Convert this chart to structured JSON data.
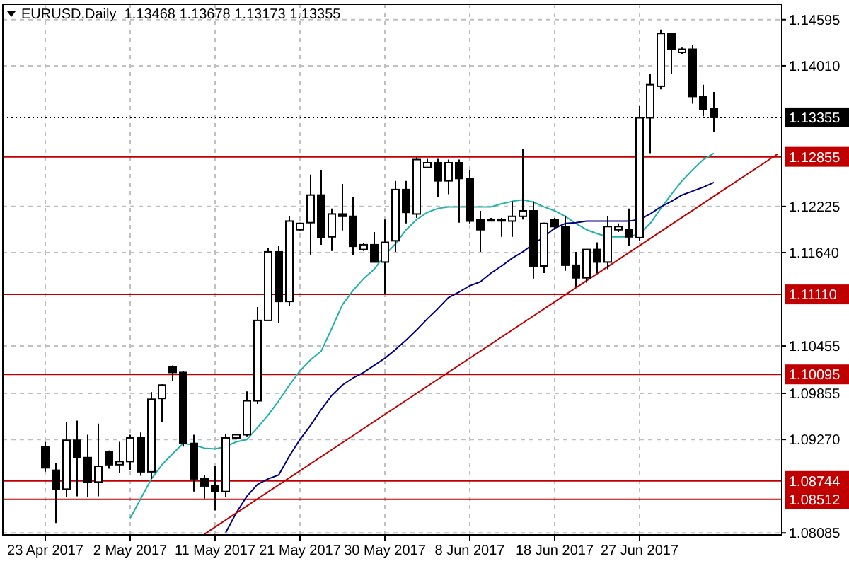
{
  "chart_data": {
    "type": "candlestick",
    "title": "EURUSD,Daily  1.13468 1.13678 1.13173 1.13355",
    "categories": [
      "23 Apr 2017",
      null,
      null,
      null,
      null,
      null,
      null,
      null,
      "2 May 2017",
      null,
      null,
      null,
      null,
      null,
      null,
      null,
      "11 May 2017",
      null,
      null,
      null,
      null,
      null,
      null,
      null,
      "21 May 2017",
      null,
      null,
      null,
      null,
      null,
      null,
      null,
      "30 May 2017",
      null,
      null,
      null,
      null,
      null,
      null,
      null,
      "8 Jun 2017",
      null,
      null,
      null,
      null,
      null,
      null,
      null,
      "18 Jun 2017",
      null,
      null,
      null,
      null,
      null,
      null,
      null,
      "27 Jun 2017",
      null,
      null,
      null,
      null,
      null,
      null,
      null,
      null,
      null,
      null,
      null,
      null,
      null
    ],
    "ohlc": [
      [
        1.0918,
        1.0924,
        1.0886,
        1.0891
      ],
      [
        1.0888,
        1.0897,
        1.0821,
        1.0864
      ],
      [
        1.0864,
        1.0949,
        1.0854,
        1.0926
      ],
      [
        1.0926,
        1.0951,
        1.0855,
        1.0904
      ],
      [
        1.0904,
        1.0933,
        1.0854,
        1.0873
      ],
      [
        1.0873,
        1.0947,
        1.0855,
        1.0893
      ],
      [
        1.0911,
        1.0913,
        1.089,
        1.0895
      ],
      [
        1.0895,
        1.0924,
        1.0884,
        1.0899
      ],
      [
        1.0899,
        1.0933,
        1.0888,
        1.0929
      ],
      [
        1.0929,
        1.0936,
        1.0881,
        1.0886
      ],
      [
        1.0886,
        1.0987,
        1.0877,
        1.0978
      ],
      [
        1.0979,
        1.0997,
        1.0949,
        1.0996
      ],
      [
        1.1019,
        1.1021,
        1.1001,
        1.1012
      ],
      [
        1.1012,
        1.1014,
        1.0918,
        1.0922
      ],
      [
        1.0922,
        1.0933,
        1.0861,
        1.0877
      ],
      [
        1.0877,
        1.0882,
        1.0852,
        1.0868
      ],
      [
        1.0868,
        1.0893,
        1.0837,
        1.0861
      ],
      [
        1.0861,
        1.0934,
        1.0854,
        1.0929
      ],
      [
        1.0929,
        1.0934,
        1.0927,
        1.0933
      ],
      [
        1.0933,
        1.0988,
        1.0931,
        1.0976
      ],
      [
        1.0976,
        1.1095,
        1.0972,
        1.1078
      ],
      [
        1.1078,
        1.117,
        1.1078,
        1.1165
      ],
      [
        1.1165,
        1.1172,
        1.1075,
        1.1102
      ],
      [
        1.1102,
        1.121,
        1.1096,
        1.1204
      ],
      [
        1.1193,
        1.1202,
        1.1192,
        1.1201
      ],
      [
        1.1202,
        1.1263,
        1.1161,
        1.1237
      ],
      [
        1.1237,
        1.1269,
        1.1174,
        1.1183
      ],
      [
        1.1184,
        1.122,
        1.1166,
        1.1213
      ],
      [
        1.1213,
        1.1251,
        1.1192,
        1.121
      ],
      [
        1.121,
        1.1235,
        1.1161,
        1.1172
      ],
      [
        1.1168,
        1.1176,
        1.1166,
        1.1174
      ],
      [
        1.1174,
        1.119,
        1.1152,
        1.1152
      ],
      [
        1.1152,
        1.1206,
        1.1111,
        1.1177
      ],
      [
        1.1179,
        1.1255,
        1.1165,
        1.1244
      ],
      [
        1.1244,
        1.1255,
        1.1201,
        1.1215
      ],
      [
        1.1213,
        1.1285,
        1.1208,
        1.1282
      ],
      [
        1.1272,
        1.1283,
        1.1271,
        1.1278
      ],
      [
        1.1278,
        1.1283,
        1.1235,
        1.1255
      ],
      [
        1.1255,
        1.1282,
        1.1238,
        1.1278
      ],
      [
        1.1278,
        1.1282,
        1.1202,
        1.1258
      ],
      [
        1.1258,
        1.1269,
        1.1201,
        1.1204
      ],
      [
        1.1206,
        1.1217,
        1.1165,
        1.1193
      ],
      [
        1.1206,
        1.1208,
        1.1205,
        1.1206
      ],
      [
        1.1206,
        1.1208,
        1.1184,
        1.1206
      ],
      [
        1.1204,
        1.1229,
        1.1184,
        1.121
      ],
      [
        1.121,
        1.1296,
        1.1206,
        1.1217
      ],
      [
        1.1217,
        1.1229,
        1.1131,
        1.1147
      ],
      [
        1.1147,
        1.1202,
        1.1138,
        1.1201
      ],
      [
        1.1206,
        1.1208,
        1.1193,
        1.1197
      ],
      [
        1.1197,
        1.1211,
        1.1141,
        1.1148
      ],
      [
        1.1148,
        1.1165,
        1.112,
        1.1132
      ],
      [
        1.1132,
        1.1168,
        1.1126,
        1.1168
      ],
      [
        1.1168,
        1.1177,
        1.1138,
        1.1152
      ],
      [
        1.1152,
        1.121,
        1.1143,
        1.1197
      ],
      [
        1.1193,
        1.1201,
        1.119,
        1.1197
      ],
      [
        1.1193,
        1.122,
        1.1172,
        1.1184
      ],
      [
        1.1183,
        1.135,
        1.1179,
        1.1335
      ],
      [
        1.1335,
        1.1391,
        1.129,
        1.1377
      ],
      [
        1.1375,
        1.1447,
        1.1371,
        1.1442
      ],
      [
        1.1442,
        1.1443,
        1.1391,
        1.1422
      ],
      [
        1.1418,
        1.1424,
        1.1416,
        1.1422
      ],
      [
        1.1422,
        1.1427,
        1.1353,
        1.1362
      ],
      [
        1.1362,
        1.1377,
        1.1337,
        1.1346
      ],
      [
        1.13468,
        1.13678,
        1.13173,
        1.13355
      ],
      null,
      null,
      null,
      null,
      null,
      null
    ],
    "series": [
      {
        "type": "line",
        "color": "#20b2aa",
        "values": [
          null,
          null,
          null,
          null,
          null,
          null,
          null,
          null,
          1.0827,
          1.0852,
          1.0877,
          1.0895,
          1.0909,
          1.0922,
          1.092,
          1.0916,
          1.0915,
          1.0918,
          1.0924,
          1.0927,
          1.0942,
          1.0958,
          1.0976,
          1.0996,
          1.1014,
          1.1028,
          1.1039,
          1.1068,
          1.1098,
          1.1116,
          1.1131,
          1.1143,
          1.1161,
          1.1175,
          1.1193,
          1.1206,
          1.1215,
          1.122,
          1.1222,
          1.1222,
          1.1222,
          1.1222,
          1.1222,
          1.1226,
          1.1229,
          1.1231,
          1.1228,
          1.1222,
          1.1217,
          1.121,
          1.1201,
          1.1193,
          1.1188,
          1.1184,
          1.1184,
          1.1184,
          1.1188,
          1.1201,
          1.122,
          1.1238,
          1.1255,
          1.1269,
          1.1282,
          1.129,
          null,
          null,
          null,
          null,
          null,
          null
        ]
      },
      {
        "type": "line",
        "color": "#000080",
        "values": [
          null,
          null,
          null,
          null,
          null,
          null,
          null,
          null,
          null,
          null,
          null,
          null,
          null,
          null,
          null,
          null,
          null,
          1.0809,
          1.0834,
          1.0855,
          1.087,
          1.0877,
          1.0882,
          1.0906,
          1.0927,
          1.0945,
          1.0965,
          1.0983,
          1.0996,
          1.1005,
          1.1012,
          1.1021,
          1.103,
          1.1041,
          1.1053,
          1.1066,
          1.108,
          1.1093,
          1.1107,
          1.1114,
          1.1122,
          1.1127,
          1.1138,
          1.1147,
          1.1157,
          1.1165,
          1.1175,
          1.1184,
          1.1195,
          1.1201,
          1.1202,
          1.1204,
          1.1204,
          1.1204,
          1.1204,
          1.1204,
          1.1206,
          1.1213,
          1.1222,
          1.1229,
          1.1237,
          1.1242,
          1.1247,
          1.1253,
          null,
          null,
          null,
          null,
          null,
          null
        ]
      },
      {
        "type": "line",
        "color": "#c00000",
        "values": [
          null,
          null,
          null,
          null,
          null,
          null,
          null,
          null,
          null,
          null,
          null,
          null,
          null,
          null,
          null,
          1.0807,
          null,
          null,
          null,
          null,
          null,
          null,
          null,
          null,
          null,
          null,
          null,
          null,
          null,
          null,
          null,
          null,
          null,
          null,
          null,
          null,
          null,
          null,
          null,
          null,
          null,
          null,
          null,
          null,
          null,
          null,
          null,
          null,
          null,
          null,
          null,
          null,
          null,
          null,
          null,
          null,
          null,
          null,
          null,
          null,
          null,
          null,
          null,
          null,
          null,
          null,
          null,
          null,
          null,
          1.1289
        ]
      }
    ],
    "ylim": [
      1.0806,
      1.1479
    ],
    "yticks": [
      1.14595,
      {
        "value": 1.1401,
        "label": "1.14010"
      },
      1.12225,
      {
        "value": 1.1164,
        "label": "1.11640"
      },
      1.10455,
      1.09855,
      {
        "value": 1.0927,
        "label": "1.09270"
      },
      1.08085
    ],
    "ref_lines": [
      {
        "axis": "y",
        "value": 1.13355,
        "label": "1.13355",
        "color": "#000000",
        "line_style": "dotted"
      },
      {
        "axis": "y",
        "value": 1.12855,
        "label": "1.12855",
        "color": "#c00000",
        "line_style": "solid"
      },
      {
        "axis": "y",
        "value": 1.1111,
        "label": "1.11110",
        "color": "#c00000",
        "line_style": "solid"
      },
      {
        "axis": "y",
        "value": 1.10095,
        "label": "1.10095",
        "color": "#c00000",
        "line_style": "solid"
      },
      {
        "axis": "y",
        "value": 1.08744,
        "label": "1.08744",
        "color": "#c00000",
        "line_style": "solid"
      },
      {
        "axis": "y",
        "value": 1.08512,
        "label": "1.08512",
        "color": "#c00000",
        "line_style": "solid"
      }
    ],
    "grid": true
  }
}
